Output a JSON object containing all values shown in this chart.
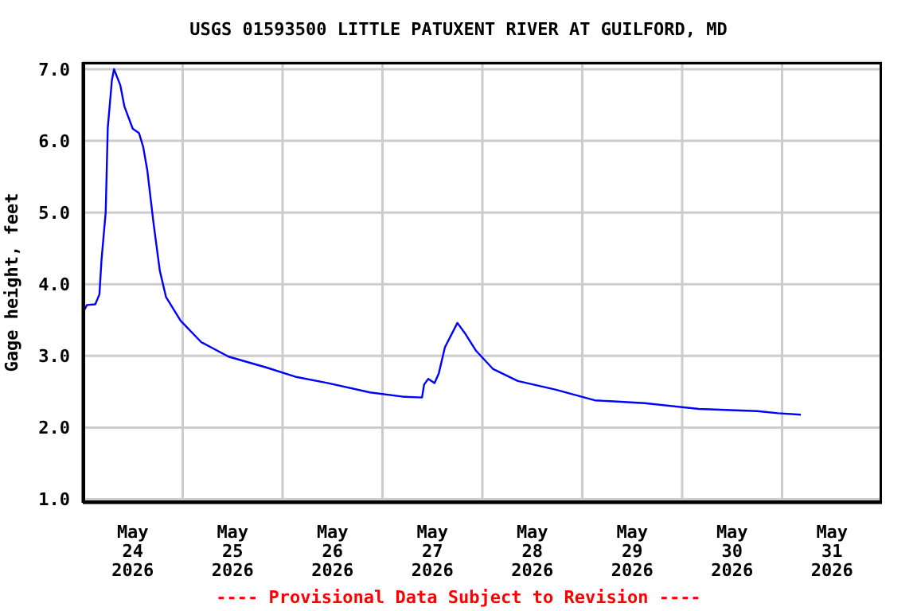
{
  "chart_data": {
    "type": "line",
    "title": "USGS 01593500 LITTLE PATUXENT RIVER AT GUILFORD, MD",
    "ylabel": "Gage height, feet",
    "annotations": [
      "---- Provisional Data Subject to Revision ----"
    ],
    "x": [
      "2026-05-24T00:00",
      "2026-05-24T01:00",
      "2026-05-24T03:00",
      "2026-05-24T04:00",
      "2026-05-24T04:30",
      "2026-05-24T05:30",
      "2026-05-24T06:00",
      "2026-05-24T07:00",
      "2026-05-24T07:30",
      "2026-05-24T09:00",
      "2026-05-24T10:00",
      "2026-05-24T12:00",
      "2026-05-24T13:30",
      "2026-05-24T14:30",
      "2026-05-24T15:30",
      "2026-05-24T17:00",
      "2026-05-24T18:30",
      "2026-05-24T20:00",
      "2026-05-24T23:30",
      "2026-05-25T04:30",
      "2026-05-25T11:00",
      "2026-05-25T20:00",
      "2026-05-26T03:00",
      "2026-05-26T11:00",
      "2026-05-26T21:00",
      "2026-05-27T05:00",
      "2026-05-27T09:30",
      "2026-05-27T10:00",
      "2026-05-27T11:00",
      "2026-05-27T12:30",
      "2026-05-27T13:30",
      "2026-05-27T15:00",
      "2026-05-27T18:00",
      "2026-05-27T20:00",
      "2026-05-27T22:30",
      "2026-05-28T02:30",
      "2026-05-28T08:30",
      "2026-05-28T17:30",
      "2026-05-29T03:00",
      "2026-05-29T15:00",
      "2026-05-30T04:00",
      "2026-05-30T18:00",
      "2026-05-30T23:00",
      "2026-05-31T04:30"
    ],
    "series": [
      {
        "color": "#0000ff",
        "values": [
          3.6,
          3.71,
          3.72,
          3.86,
          4.34,
          5.0,
          6.18,
          6.85,
          7.0,
          6.78,
          6.48,
          6.17,
          6.11,
          5.92,
          5.59,
          4.85,
          4.19,
          3.82,
          3.49,
          3.19,
          2.99,
          2.84,
          2.71,
          2.62,
          2.49,
          2.43,
          2.42,
          2.6,
          2.68,
          2.62,
          2.75,
          3.12,
          3.46,
          3.3,
          3.07,
          2.82,
          2.65,
          2.53,
          2.38,
          2.34,
          2.26,
          2.23,
          2.2,
          2.18
        ]
      }
    ],
    "xlim": [
      "2026-05-24T00:00",
      "2026-06-01T00:00"
    ],
    "xticks": [
      {
        "value": "2026-05-24T12:00",
        "label": "May\n24\n2026"
      },
      {
        "value": "2026-05-25T00:00",
        "label": null
      },
      {
        "value": "2026-05-25T12:00",
        "label": "May\n25\n2026"
      },
      {
        "value": "2026-05-26T00:00",
        "label": null
      },
      {
        "value": "2026-05-26T12:00",
        "label": "May\n26\n2026"
      },
      {
        "value": "2026-05-27T00:00",
        "label": null
      },
      {
        "value": "2026-05-27T12:00",
        "label": "May\n27\n2026"
      },
      {
        "value": "2026-05-28T00:00",
        "label": null
      },
      {
        "value": "2026-05-28T12:00",
        "label": "May\n28\n2026"
      },
      {
        "value": "2026-05-29T00:00",
        "label": null
      },
      {
        "value": "2026-05-29T12:00",
        "label": "May\n29\n2026"
      },
      {
        "value": "2026-05-30T00:00",
        "label": null
      },
      {
        "value": "2026-05-30T12:00",
        "label": "May\n30\n2026"
      },
      {
        "value": "2026-05-31T00:00",
        "label": null
      },
      {
        "value": "2026-05-31T12:00",
        "label": "May\n31\n2026"
      }
    ],
    "ylim": [
      0.95,
      7.1
    ],
    "yticks": [
      {
        "value": 1,
        "label": "1.0"
      },
      {
        "value": 2,
        "label": "2.0"
      },
      {
        "value": 3,
        "label": "3.0"
      },
      {
        "value": 4,
        "label": "4.0"
      },
      {
        "value": 5,
        "label": "5.0"
      },
      {
        "value": 6,
        "label": "6.0"
      },
      {
        "value": 7,
        "label": "7.0"
      }
    ],
    "grid": true,
    "legend": false,
    "marker": "none",
    "line_style": "solid"
  }
}
